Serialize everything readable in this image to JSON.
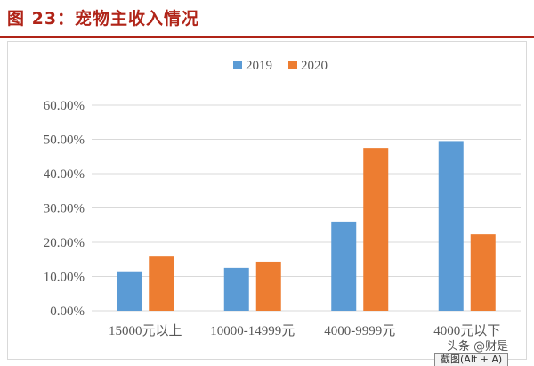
{
  "figure": {
    "title": "图 23：宠物主收入情况"
  },
  "overlay": {
    "watermark": "头条 @财是",
    "shortcut_tip": "截图(Alt + A)"
  },
  "colors": {
    "title": "#b02418",
    "series_2019": "#5b9bd5",
    "series_2020": "#ed7d31",
    "grid": "#d9d9d9",
    "text": "#595959"
  },
  "chart_data": {
    "type": "bar",
    "title": "",
    "xlabel": "",
    "ylabel": "",
    "categories": [
      "15000元以上",
      "10000-14999元",
      "4000-9999元",
      "4000元以下"
    ],
    "series": [
      {
        "name": "2019",
        "values": [
          11.5,
          12.5,
          26.0,
          49.5
        ]
      },
      {
        "name": "2020",
        "values": [
          15.8,
          14.3,
          47.5,
          22.3
        ]
      }
    ],
    "ylim": [
      0,
      60
    ],
    "yticks": [
      "0.00%",
      "10.00%",
      "20.00%",
      "30.00%",
      "40.00%",
      "50.00%",
      "60.00%"
    ],
    "grid": true,
    "legend": "top-center"
  }
}
